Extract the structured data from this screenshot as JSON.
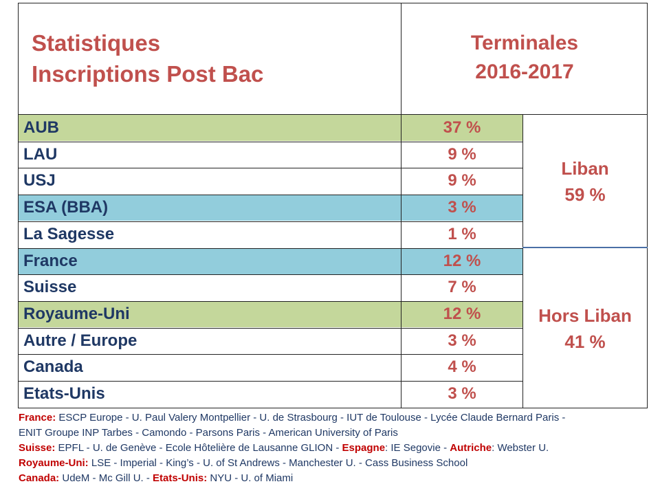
{
  "header": {
    "title_line1": "Statistiques",
    "title_line2": "Inscriptions Post Bac",
    "right_line1": "Terminales",
    "right_line2": "2016-2017"
  },
  "rows": [
    {
      "name": "AUB",
      "pct": "37 %",
      "highlight": "green"
    },
    {
      "name": "LAU",
      "pct": "9 %",
      "highlight": ""
    },
    {
      "name": "USJ",
      "pct": "9 %",
      "highlight": ""
    },
    {
      "name": "ESA (BBA)",
      "pct": "3 %",
      "highlight": "blue"
    },
    {
      "name": "La Sagesse",
      "pct": "1 %",
      "highlight": ""
    },
    {
      "name": "France",
      "pct": "12 %",
      "highlight": "blue"
    },
    {
      "name": "Suisse",
      "pct": "7 %",
      "highlight": ""
    },
    {
      "name": "Royaume-Uni",
      "pct": "12 %",
      "highlight": "green"
    },
    {
      "name": "Autre / Europe",
      "pct": "3 %",
      "highlight": ""
    },
    {
      "name": "Canada",
      "pct": "4 %",
      "highlight": ""
    },
    {
      "name": "Etats-Unis",
      "pct": "3 %",
      "highlight": ""
    }
  ],
  "groups": {
    "liban": {
      "label": "Liban",
      "value": "59 %"
    },
    "hors_liban": {
      "label": "Hors Liban",
      "value": "41 %"
    }
  },
  "notes": {
    "france_label": "France:",
    "france_text1": " ESCP Europe - U. Paul Valery Montpellier - U. de Strasbourg - IUT de Toulouse - Lycée Claude Bernard Paris -",
    "france_text2": "ENIT Groupe INP Tarbes - Camondo - Parsons Paris - American University of Paris",
    "suisse_label": "Suisse:",
    "suisse_text": " EPFL - U. de Genève - Ecole Hôtelière de Lausanne GLION - ",
    "espagne_label": "Espagne",
    "espagne_text": ": IE Segovie - ",
    "autriche_label": "Autriche",
    "autriche_text": ": Webster U.",
    "uk_label": "Royaume-Uni:",
    "uk_text": " LSE - Imperial - King’s - U. of St Andrews - Manchester U. - Cass Business School",
    "canada_label": "Canada:",
    "canada_text": " UdeM - Mc Gill U. - ",
    "usa_label": "Etats-Unis:",
    "usa_text": " NYU - U. of Miami"
  },
  "colors": {
    "accent_red": "#c0504d",
    "text_navy": "#1f3864",
    "green_fill": "#c4d79b",
    "blue_fill": "#92cddc",
    "note_label_red": "#c00000"
  }
}
